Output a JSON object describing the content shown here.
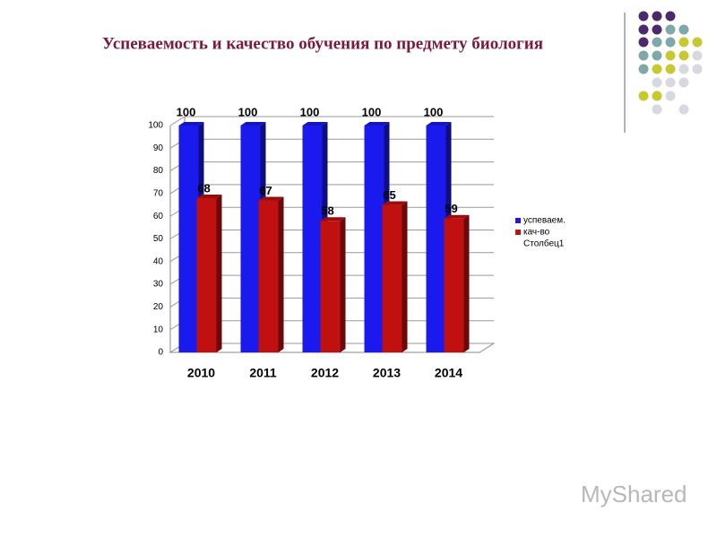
{
  "chart_data": {
    "type": "bar",
    "title": "Успеваемость и качество обучения по предмету биология",
    "categories": [
      "2010",
      "2011",
      "2012",
      "2013",
      "2014"
    ],
    "series": [
      {
        "name": "успеваем.",
        "color": "#1a1aee",
        "values": [
          100,
          100,
          100,
          100,
          100
        ]
      },
      {
        "name": "кач-во",
        "color": "#c01010",
        "values": [
          68,
          67,
          58,
          65,
          59
        ]
      },
      {
        "name": "Столбец1",
        "values": [
          null,
          null,
          null,
          null,
          null
        ]
      }
    ],
    "ylim": [
      0,
      100
    ],
    "yticks": [
      0,
      10,
      20,
      30,
      40,
      50,
      60,
      70,
      80,
      90,
      100
    ],
    "grid": true,
    "legend": "right"
  },
  "watermark": "MyShared"
}
